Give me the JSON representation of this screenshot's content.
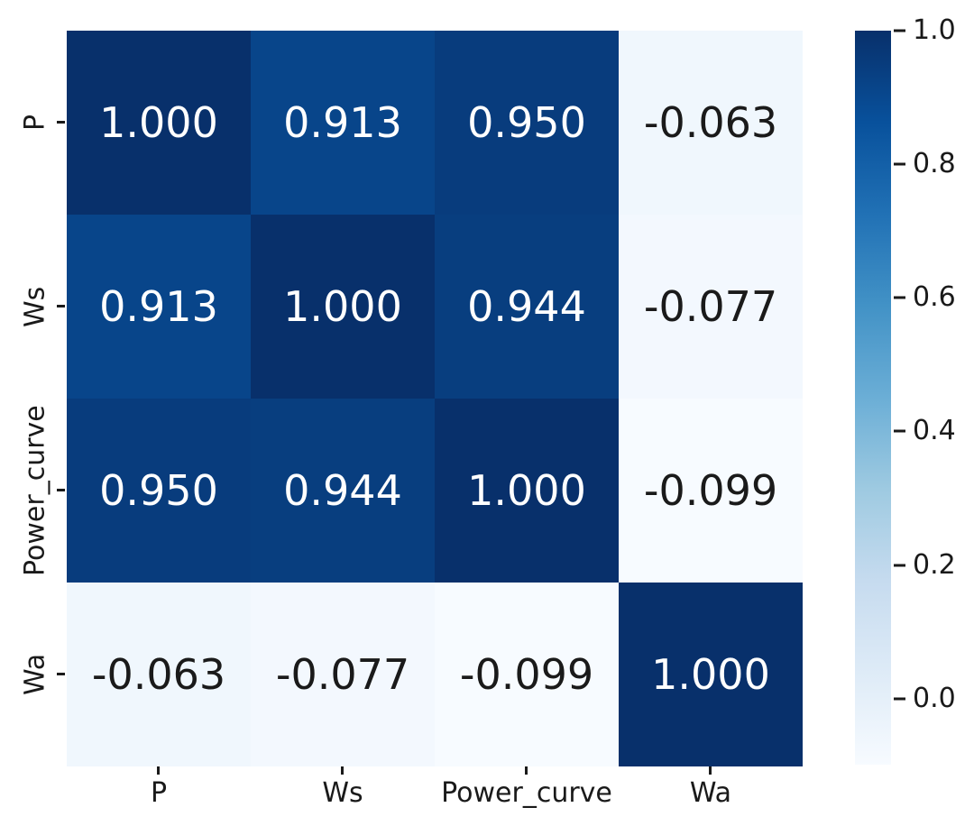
{
  "chart_data": {
    "type": "heatmap",
    "title": "",
    "colormap": "Blues",
    "vmin": -0.099,
    "vmax": 1.0,
    "grid": false,
    "categories": [
      "P",
      "Ws",
      "Power_curve",
      "Wa"
    ],
    "x_tick_labels": [
      "P",
      "Ws",
      "Power_curve",
      "Wa"
    ],
    "y_tick_labels": [
      "P",
      "Ws",
      "Power_curve",
      "Wa"
    ],
    "matrix": [
      [
        1.0,
        0.913,
        0.95,
        -0.063
      ],
      [
        0.913,
        1.0,
        0.944,
        -0.077
      ],
      [
        0.95,
        0.944,
        1.0,
        -0.099
      ],
      [
        -0.063,
        -0.077,
        -0.099,
        1.0
      ]
    ],
    "rows": [
      {
        "label": "P",
        "cells": [
          {
            "value": 1.0,
            "display": "1.000",
            "bg": "#08306b",
            "fg": "#ffffff"
          },
          {
            "value": 0.913,
            "display": "0.913",
            "bg": "#08458a",
            "fg": "#ffffff"
          },
          {
            "value": 0.95,
            "display": "0.950",
            "bg": "#083c7d",
            "fg": "#ffffff"
          },
          {
            "value": -0.063,
            "display": "-0.063",
            "bg": "#f0f7fd",
            "fg": "#1a1a1a"
          }
        ]
      },
      {
        "label": "Ws",
        "cells": [
          {
            "value": 0.913,
            "display": "0.913",
            "bg": "#08458a",
            "fg": "#ffffff"
          },
          {
            "value": 1.0,
            "display": "1.000",
            "bg": "#08306b",
            "fg": "#ffffff"
          },
          {
            "value": 0.944,
            "display": "0.944",
            "bg": "#083e7f",
            "fg": "#ffffff"
          },
          {
            "value": -0.077,
            "display": "-0.077",
            "bg": "#f3f8fe",
            "fg": "#1a1a1a"
          }
        ]
      },
      {
        "label": "Power_curve",
        "cells": [
          {
            "value": 0.95,
            "display": "0.950",
            "bg": "#083c7d",
            "fg": "#ffffff"
          },
          {
            "value": 0.944,
            "display": "0.944",
            "bg": "#083e7f",
            "fg": "#ffffff"
          },
          {
            "value": 1.0,
            "display": "1.000",
            "bg": "#08306b",
            "fg": "#ffffff"
          },
          {
            "value": -0.099,
            "display": "-0.099",
            "bg": "#f7fbff",
            "fg": "#1a1a1a"
          }
        ]
      },
      {
        "label": "Wa",
        "cells": [
          {
            "value": -0.063,
            "display": "-0.063",
            "bg": "#f0f7fd",
            "fg": "#1a1a1a"
          },
          {
            "value": -0.077,
            "display": "-0.077",
            "bg": "#f3f8fe",
            "fg": "#1a1a1a"
          },
          {
            "value": -0.099,
            "display": "-0.099",
            "bg": "#f7fbff",
            "fg": "#1a1a1a"
          },
          {
            "value": 1.0,
            "display": "1.000",
            "bg": "#08306b",
            "fg": "#ffffff"
          }
        ]
      }
    ],
    "colorbar": {
      "orientation": "vertical",
      "position": "right",
      "top_color": "#08306b",
      "bottom_color": "#f7fbff",
      "gradient_stops": [
        "#08306b",
        "#08519c",
        "#2171b5",
        "#4292c6",
        "#6baed6",
        "#9ecae1",
        "#c6dbef",
        "#deebf7",
        "#f7fbff"
      ],
      "ticks": [
        {
          "label": "1.0",
          "value": 1.0,
          "pos": "0%"
        },
        {
          "label": "0.8",
          "value": 0.8,
          "pos": "18.2%"
        },
        {
          "label": "0.6",
          "value": 0.6,
          "pos": "36.4%"
        },
        {
          "label": "0.4",
          "value": 0.4,
          "pos": "54.6%"
        },
        {
          "label": "0.2",
          "value": 0.2,
          "pos": "72.8%"
        },
        {
          "label": "0.0",
          "value": 0.0,
          "pos": "91%"
        }
      ]
    }
  }
}
